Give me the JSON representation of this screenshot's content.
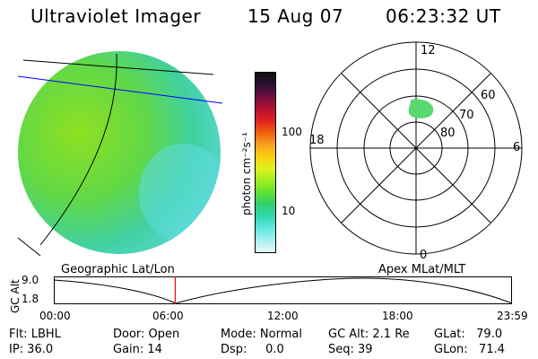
{
  "header": {
    "instrument": "Ultraviolet Imager",
    "date": "15 Aug 07",
    "time": "06:23:32 UT"
  },
  "colorbar": {
    "unit_label": "photon cm⁻²s⁻¹",
    "ticks": [
      "100",
      "10"
    ],
    "colors": [
      "#101010",
      "#2a1030",
      "#701040",
      "#b01030",
      "#e02020",
      "#f06010",
      "#f8a020",
      "#f8d010",
      "#e0f020",
      "#a0f020",
      "#60e030",
      "#30d070",
      "#30d8b0",
      "#60e8e0",
      "#a8f0f0",
      "#e8f8f8"
    ]
  },
  "polar": {
    "mlt_labels": {
      "top": "12",
      "bottom": "0",
      "left": "18",
      "right": "6"
    },
    "lat_labels": [
      "60",
      "70",
      "80"
    ]
  },
  "section_labels": {
    "geographic": "Geographic Lat/Lon",
    "apex": "Apex MLat/MLT"
  },
  "orbit": {
    "axis_title": "GC Alt",
    "y_max": "9.0",
    "y_min": "1.8",
    "x_ticks": [
      "00:00",
      "06:00",
      "12:00",
      "18:00",
      "23:59"
    ],
    "current_time_fraction": 0.265
  },
  "info": {
    "filter": "Flt: LBHL",
    "door": "Door: Open",
    "mode": "Mode: Normal",
    "gc_alt": "GC Alt: 2.1 Re",
    "glat": "GLat:   79.0",
    "ip": "IP: 36.0",
    "gain": "Gain: 14",
    "dsp": "Dsp:     0.0",
    "seq": "Seq: 39",
    "glon": "GLon:   71.4"
  }
}
